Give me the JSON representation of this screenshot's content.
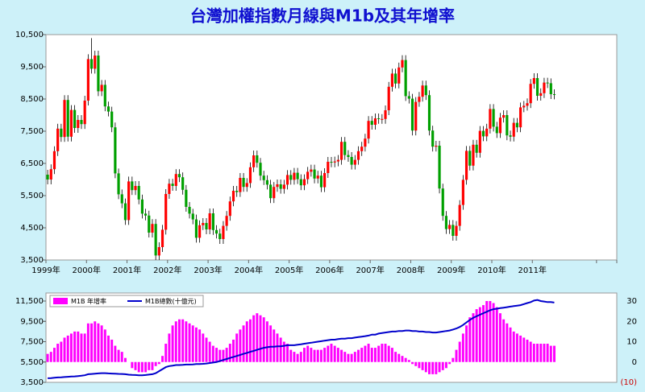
{
  "chart_data": [
    {
      "type": "candlestick",
      "title": "台灣加權指數月線與M1b及其年增率",
      "categories": [
        "1999年",
        null,
        null,
        null,
        null,
        null,
        null,
        null,
        null,
        null,
        null,
        null,
        "2000年",
        null,
        null,
        null,
        null,
        null,
        null,
        null,
        null,
        null,
        null,
        null,
        "2001年",
        null,
        null,
        null,
        null,
        null,
        null,
        null,
        null,
        null,
        null,
        null,
        "2002年",
        null,
        null,
        null,
        null,
        null,
        null,
        null,
        null,
        null,
        null,
        null,
        "2003年",
        null,
        null,
        null,
        null,
        null,
        null,
        null,
        null,
        null,
        null,
        null,
        "2004年",
        null,
        null,
        null,
        null,
        null,
        null,
        null,
        null,
        null,
        null,
        null,
        "2005年",
        null,
        null,
        null,
        null,
        null,
        null,
        null,
        null,
        null,
        null,
        null,
        "2006年",
        null,
        null,
        null,
        null,
        null,
        null,
        null,
        null,
        null,
        null,
        null,
        "2007年",
        null,
        null,
        null,
        null,
        null,
        null,
        null,
        null,
        null,
        null,
        null,
        "2008年",
        null,
        null,
        null,
        null,
        null,
        null,
        null,
        null,
        null,
        null,
        null,
        "2009年",
        null,
        null,
        null,
        null,
        null,
        null,
        null,
        null,
        null,
        null,
        null,
        "2010年",
        null,
        null,
        null,
        null,
        null,
        null,
        null,
        null,
        null,
        null,
        null,
        "2011年",
        null,
        null,
        null,
        null,
        null,
        null
      ],
      "open": [
        6150,
        6000,
        6320,
        6880,
        7580,
        7320,
        8470,
        7330,
        8160,
        7600,
        7850,
        7720,
        8450,
        9740,
        9440,
        9850,
        8740,
        8940,
        8270,
        8110,
        7620,
        6190,
        5540,
        5260,
        4740,
        5940,
        5670,
        5800,
        5380,
        4940,
        4880,
        4350,
        4620,
        3640,
        3900,
        4440,
        5550,
        5870,
        5800,
        6170,
        6070,
        5680,
        5150,
        4940,
        4760,
        4190,
        4580,
        4650,
        4450,
        4950,
        4430,
        4320,
        4150,
        4560,
        4870,
        5320,
        5650,
        5610,
        6050,
        5770,
        5890,
        6380,
        6750,
        6520,
        6120,
        5980,
        5840,
        5420,
        5770,
        5850,
        5710,
        5840,
        6140,
        5990,
        6210,
        6010,
        5820,
        6010,
        6240,
        6310,
        6030,
        6120,
        5760,
        6200,
        6550,
        6530,
        6560,
        6610,
        7170,
        6760,
        6700,
        6460,
        6610,
        6880,
        7020,
        7270,
        7820,
        7700,
        7900,
        7880,
        7880,
        8150,
        8880,
        9290,
        8980,
        9480,
        9710,
        8590,
        8510,
        7520,
        8410,
        8570,
        8920,
        8620,
        7520,
        7020,
        7050,
        5720,
        4870,
        4460,
        4590,
        4250,
        4560,
        5210,
        5990,
        6890,
        6430,
        7080,
        6830,
        7510,
        7340,
        7580,
        8190,
        7640,
        7440,
        7920,
        8000,
        7370,
        7330,
        7760,
        7620,
        8240,
        8290,
        8370,
        8970,
        9150,
        8600,
        8680,
        9010,
        8990,
        8650
      ],
      "high": [
        6300,
        6470,
        7030,
        7730,
        7730,
        8620,
        8620,
        8310,
        8310,
        8000,
        8000,
        8600,
        9890,
        10390,
        10000,
        10000,
        9090,
        9090,
        8420,
        8260,
        7770,
        6340,
        5690,
        5410,
        6090,
        6090,
        5950,
        5950,
        5530,
        5090,
        5030,
        4770,
        4770,
        4050,
        4590,
        5700,
        6020,
        6020,
        6320,
        6320,
        6220,
        5830,
        5300,
        5090,
        4910,
        4730,
        4800,
        4800,
        5100,
        5100,
        4580,
        4470,
        4710,
        5020,
        5470,
        5800,
        5800,
        6200,
        6200,
        6040,
        6530,
        6900,
        6900,
        6670,
        6270,
        6130,
        5990,
        5920,
        6000,
        6000,
        5990,
        6290,
        6290,
        6360,
        6360,
        6160,
        6160,
        6390,
        6460,
        6460,
        6270,
        6270,
        6350,
        6700,
        6700,
        6710,
        6760,
        7320,
        7320,
        6910,
        6850,
        6760,
        7030,
        7170,
        7420,
        7970,
        7970,
        8050,
        8050,
        8030,
        8300,
        9030,
        9440,
        9440,
        9630,
        9860,
        9860,
        8740,
        8660,
        8560,
        8720,
        9070,
        9070,
        8770,
        7670,
        7200,
        7200,
        5870,
        5020,
        4740,
        4740,
        4710,
        5360,
        6140,
        7040,
        7040,
        7230,
        7230,
        7660,
        7660,
        7730,
        8340,
        8340,
        7790,
        8070,
        8150,
        8150,
        7520,
        7910,
        7910,
        8390,
        8440,
        8520,
        9120,
        9300,
        9300,
        8830,
        9160,
        9160,
        9140,
        8800
      ],
      "low": [
        5850,
        5850,
        6170,
        6730,
        7170,
        7170,
        7180,
        7180,
        7450,
        7450,
        7570,
        7570,
        8300,
        9290,
        9290,
        8590,
        8590,
        8120,
        7960,
        7470,
        6040,
        5390,
        5110,
        4590,
        4590,
        5520,
        5520,
        5230,
        4790,
        4730,
        4200,
        4200,
        3500,
        3500,
        3750,
        4290,
        5400,
        5650,
        5650,
        5920,
        5530,
        5000,
        4790,
        4610,
        4040,
        4040,
        4430,
        4300,
        4300,
        4280,
        4170,
        4000,
        4000,
        4410,
        4720,
        5170,
        5460,
        5460,
        5620,
        5620,
        5740,
        6230,
        6370,
        5970,
        5830,
        5690,
        5270,
        5270,
        5620,
        5560,
        5560,
        5690,
        5840,
        5840,
        5860,
        5670,
        5670,
        5860,
        6090,
        5880,
        5880,
        5610,
        5610,
        6050,
        6380,
        6380,
        6410,
        6460,
        6610,
        6550,
        6310,
        6310,
        6460,
        6730,
        6870,
        7120,
        7550,
        7550,
        7730,
        7730,
        7730,
        8000,
        8730,
        8830,
        8830,
        9330,
        8440,
        8360,
        7370,
        7370,
        8260,
        8420,
        8470,
        7370,
        6870,
        6870,
        5570,
        4720,
        4310,
        4310,
        4100,
        4100,
        4410,
        5060,
        5840,
        6280,
        6280,
        6680,
        6680,
        7190,
        7190,
        7430,
        7490,
        7290,
        7290,
        7770,
        7220,
        7180,
        7180,
        7470,
        7470,
        8090,
        8140,
        8220,
        8820,
        8450,
        8450,
        8530,
        8840,
        8500,
        8490
      ],
      "close": [
        6000,
        6320,
        6880,
        7580,
        7320,
        8470,
        7330,
        8160,
        7600,
        7850,
        7720,
        8450,
        9740,
        9440,
        9850,
        8740,
        8940,
        8270,
        8110,
        7620,
        6190,
        5540,
        5260,
        4740,
        5940,
        5670,
        5800,
        5380,
        4940,
        4880,
        4350,
        4620,
        3640,
        3900,
        4440,
        5550,
        5870,
        5800,
        6170,
        6070,
        5680,
        5150,
        4940,
        4760,
        4190,
        4580,
        4650,
        4450,
        4950,
        4430,
        4320,
        4150,
        4560,
        4870,
        5320,
        5650,
        5610,
        6050,
        5770,
        5890,
        6380,
        6750,
        6520,
        6120,
        5980,
        5840,
        5420,
        5770,
        5850,
        5710,
        5840,
        6140,
        5990,
        6210,
        6010,
        5820,
        6010,
        6240,
        6310,
        6030,
        6120,
        5760,
        6200,
        6550,
        6530,
        6560,
        6610,
        7170,
        6760,
        6700,
        6460,
        6610,
        6880,
        7020,
        7270,
        7820,
        7700,
        7900,
        7880,
        7880,
        8150,
        8880,
        9290,
        8980,
        9480,
        9710,
        8590,
        8510,
        7520,
        8410,
        8570,
        8920,
        8620,
        7520,
        7020,
        7050,
        5720,
        4870,
        4460,
        4590,
        4250,
        4560,
        5210,
        5990,
        6890,
        6430,
        7080,
        6830,
        7510,
        7340,
        7580,
        8190,
        7640,
        7440,
        7920,
        8000,
        7370,
        7330,
        7760,
        7620,
        8240,
        8290,
        8370,
        8970,
        9150,
        8600,
        8680,
        9010,
        8990,
        8650,
        8640
      ],
      "up_color": "#ff0000",
      "down_color": "#00a000",
      "ylim": [
        3500,
        10500
      ],
      "yticks": [
        {
          "value": 3500,
          "label": "3,500"
        },
        {
          "value": 4500,
          "label": "4,500"
        },
        {
          "value": 5500,
          "label": "5,500"
        },
        {
          "value": 6500,
          "label": "6,500"
        },
        {
          "value": 7500,
          "label": "7,500"
        },
        {
          "value": 8500,
          "label": "8,500"
        },
        {
          "value": 9500,
          "label": "9,500"
        },
        {
          "value": 10500,
          "label": "10,500"
        }
      ]
    },
    {
      "type": "combo",
      "legend": "upper left",
      "series": [
        {
          "name": "M1B 年增率",
          "type": "bar",
          "axis": "y2",
          "color": "#ff00ff",
          "values": [
            4,
            5,
            7,
            9,
            10,
            12,
            13,
            14,
            15,
            15,
            14,
            14,
            19,
            19,
            20,
            19,
            18,
            16,
            13,
            11,
            8,
            6,
            5,
            2,
            0,
            -3,
            -4,
            -5,
            -5,
            -5,
            -4,
            -4,
            -2,
            -1,
            3,
            9,
            14,
            18,
            20,
            21,
            21,
            20,
            19,
            18,
            17,
            16,
            14,
            12,
            10,
            8,
            7,
            6,
            6,
            7,
            9,
            11,
            14,
            16,
            18,
            20,
            21,
            23,
            24,
            23,
            22,
            20,
            18,
            16,
            14,
            12,
            10,
            9,
            6,
            5,
            4,
            5,
            7,
            8,
            7,
            6,
            6,
            6,
            7,
            8,
            9,
            8,
            7,
            6,
            5,
            4,
            4,
            5,
            6,
            7,
            8,
            9,
            7,
            7,
            8,
            9,
            9,
            8,
            7,
            5,
            4,
            3,
            2,
            1,
            -1,
            -2,
            -3,
            -4,
            -5,
            -6,
            -6,
            -6,
            -5,
            -4,
            -3,
            -1,
            2,
            6,
            10,
            14,
            18,
            22,
            24,
            26,
            27,
            28,
            30,
            30,
            29,
            27,
            24,
            21,
            19,
            17,
            15,
            14,
            13,
            12,
            11,
            10,
            9,
            9,
            9,
            9,
            9,
            8,
            8
          ]
        },
        {
          "name": "M1B總數(十億元)",
          "type": "line",
          "color": "#0000cc",
          "values": [
            3900,
            3920,
            3950,
            3980,
            4000,
            4020,
            4050,
            4070,
            4090,
            4120,
            4150,
            4200,
            4300,
            4320,
            4350,
            4380,
            4400,
            4400,
            4380,
            4360,
            4350,
            4330,
            4320,
            4300,
            4250,
            4230,
            4220,
            4200,
            4200,
            4220,
            4260,
            4300,
            4400,
            4600,
            4800,
            5000,
            5100,
            5150,
            5200,
            5200,
            5220,
            5250,
            5250,
            5270,
            5300,
            5300,
            5320,
            5350,
            5400,
            5450,
            5500,
            5600,
            5700,
            5800,
            5900,
            6000,
            6100,
            6200,
            6300,
            6400,
            6500,
            6600,
            6700,
            6800,
            6900,
            6950,
            7000,
            7000,
            7050,
            7050,
            7100,
            7150,
            7150,
            7150,
            7200,
            7250,
            7300,
            7350,
            7400,
            7450,
            7500,
            7550,
            7600,
            7650,
            7700,
            7700,
            7750,
            7800,
            7800,
            7850,
            7850,
            7900,
            7950,
            8000,
            8050,
            8100,
            8200,
            8200,
            8300,
            8350,
            8400,
            8450,
            8500,
            8500,
            8550,
            8550,
            8600,
            8600,
            8550,
            8550,
            8500,
            8500,
            8450,
            8450,
            8400,
            8400,
            8450,
            8500,
            8550,
            8600,
            8700,
            8800,
            8950,
            9150,
            9400,
            9650,
            9850,
            10000,
            10150,
            10300,
            10450,
            10600,
            10700,
            10750,
            10800,
            10850,
            10900,
            10950,
            11000,
            11050,
            11100,
            11200,
            11300,
            11400,
            11550,
            11600,
            11500,
            11450,
            11400,
            11400,
            11350
          ]
        }
      ],
      "ylim": [
        3500,
        11500
      ],
      "yticks": [
        {
          "value": 3500,
          "label": "3,500"
        },
        {
          "value": 5500,
          "label": "5,500"
        },
        {
          "value": 7500,
          "label": "7,500"
        },
        {
          "value": 9500,
          "label": "9,500"
        },
        {
          "value": 11500,
          "label": "11,500"
        }
      ],
      "y2lim": [
        -10,
        30
      ],
      "y2ticks": [
        {
          "value": -10,
          "label": "(10)"
        },
        0,
        10,
        20,
        30
      ]
    }
  ]
}
